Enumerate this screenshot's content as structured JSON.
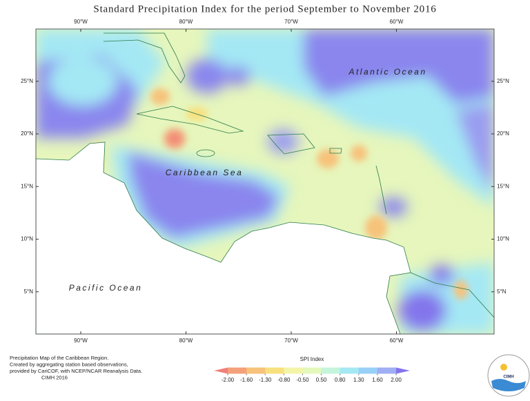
{
  "title": "Standard Precipitation Index for the period September to November 2016",
  "map": {
    "lon_ticks": [
      {
        "value": -90,
        "label": "90°W"
      },
      {
        "value": -80,
        "label": "80°W"
      },
      {
        "value": -70,
        "label": "70°W"
      },
      {
        "value": -60,
        "label": "60°W"
      }
    ],
    "lat_ticks": [
      {
        "value": 25,
        "label": "25°N"
      },
      {
        "value": 20,
        "label": "20°N"
      },
      {
        "value": 15,
        "label": "15°N"
      },
      {
        "value": 10,
        "label": "10°N"
      },
      {
        "value": 5,
        "label": "5°N"
      }
    ],
    "labels": [
      "Atlantic Ocean",
      "Caribbean Sea",
      "Pacific Ocean"
    ]
  },
  "legend": {
    "title": "SPI Index",
    "ticks": [
      {
        "value": -2,
        "label": "-2.00"
      },
      {
        "value": -1.6,
        "label": "-1.60"
      },
      {
        "value": -1.3,
        "label": "-1.30"
      },
      {
        "value": -0.8,
        "label": "-0.80"
      },
      {
        "value": -0.5,
        "label": "-0.50"
      },
      {
        "value": 0.5,
        "label": "0.50"
      },
      {
        "value": 0.8,
        "label": "0.80"
      },
      {
        "value": 1.3,
        "label": "1.30"
      },
      {
        "value": 1.6,
        "label": "1.60"
      },
      {
        "value": 2,
        "label": "2.00"
      }
    ],
    "colors": [
      "#f0807a",
      "#f4a07a",
      "#f7c27a",
      "#f8e07e",
      "#f4f4a8",
      "#e4f8bc",
      "#c4f4dc",
      "#a4e8f4",
      "#98d0f8",
      "#a0aef4",
      "#8474ec"
    ]
  },
  "footer": [
    "Precipitation Map of the Caribbean Region.",
    "Created by aggregating station based observations,",
    "provided by CariCOF, with NCEP/NCAR Reanalysis Data.",
    "CIMH 2016"
  ],
  "logo": "CIMH"
}
